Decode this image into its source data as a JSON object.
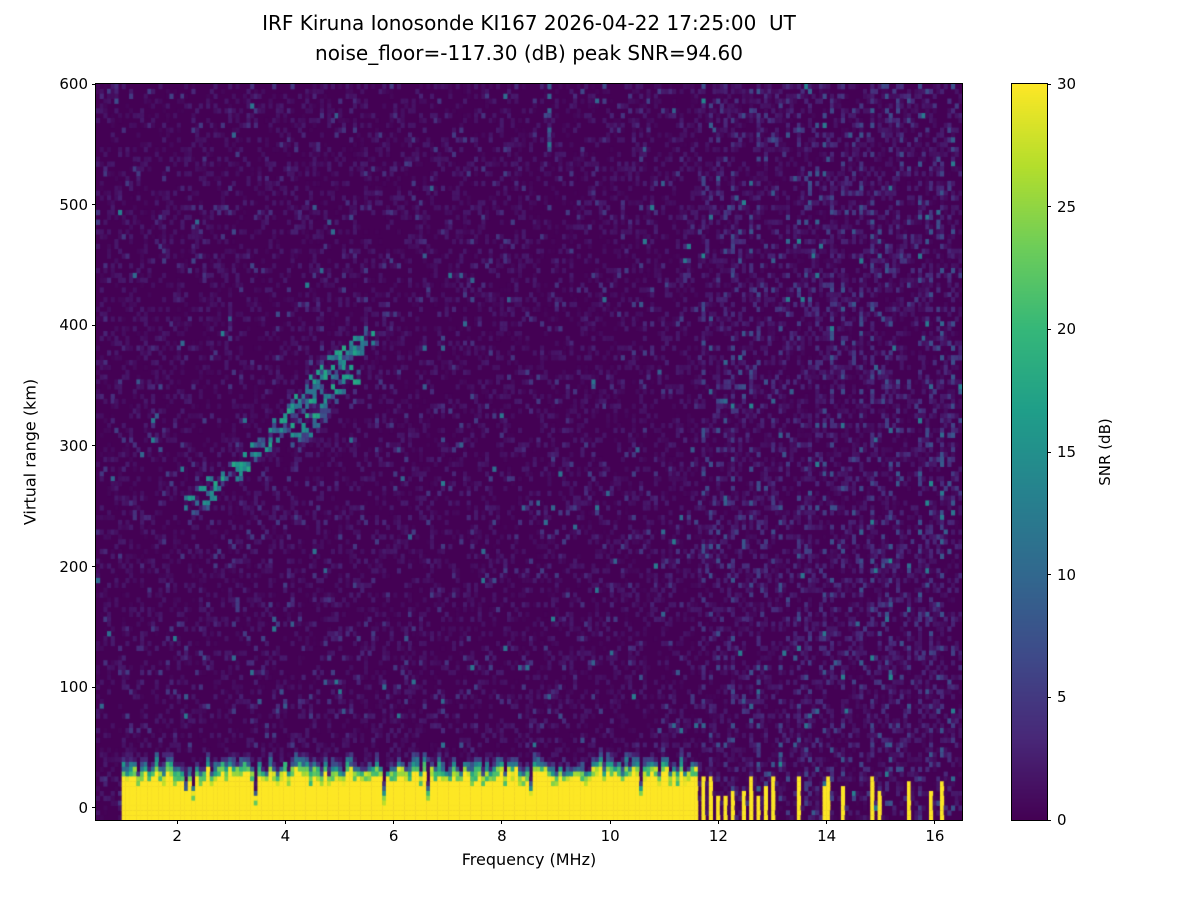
{
  "chart_data": {
    "type": "heatmap",
    "title_line1": "IRF Kiruna Ionosonde KI167 2026-04-22 17:25:00  UT",
    "title_line2": "noise_floor=-117.30 (dB) peak SNR=94.60",
    "xlabel": "Frequency (MHz)",
    "ylabel": "Virtual range (km)",
    "colorbar_label": "SNR (dB)",
    "colormap": "viridis",
    "xlim": [
      0.5,
      16.5
    ],
    "ylim": [
      -10,
      600
    ],
    "clim": [
      0,
      30
    ],
    "xticks": [
      2,
      4,
      6,
      8,
      10,
      12,
      14,
      16
    ],
    "yticks": [
      0,
      100,
      200,
      300,
      400,
      500,
      600
    ],
    "colorbar_ticks": [
      0,
      5,
      10,
      15,
      20,
      25,
      30
    ],
    "noise_floor_db": -117.3,
    "peak_snr_db": 94.6,
    "features": {
      "ground_clutter": {
        "freq_range_mhz": [
          0.95,
          11.65
        ],
        "top_km_base": 24,
        "top_km_jitter": 12,
        "snr_db": 30
      },
      "clutter_stripes_mhz": [
        11.72,
        11.86,
        12.0,
        12.14,
        12.28,
        12.44,
        12.58,
        12.72,
        12.86,
        13.0,
        13.5,
        13.95,
        14.05,
        14.3,
        14.85,
        15.0,
        15.5,
        15.9,
        16.1
      ],
      "rfi_columns_mhz": [
        11.72,
        11.86,
        12.0,
        12.14,
        12.28,
        12.44,
        12.58,
        12.72,
        12.86,
        13.0,
        13.15,
        13.3,
        13.5,
        13.65,
        13.8,
        13.95,
        14.1,
        14.3,
        14.5,
        14.65,
        14.85,
        15.0,
        15.15,
        15.35,
        15.5,
        15.7,
        15.9,
        16.1,
        16.3
      ],
      "echo_trace_mhz_km": [
        [
          2.25,
          252
        ],
        [
          2.45,
          258
        ],
        [
          2.65,
          264
        ],
        [
          2.85,
          272
        ],
        [
          3.05,
          280
        ],
        [
          3.25,
          288
        ],
        [
          3.45,
          296
        ],
        [
          3.65,
          305
        ],
        [
          3.85,
          313
        ],
        [
          4.0,
          320
        ],
        [
          4.15,
          328
        ],
        [
          4.3,
          336
        ],
        [
          4.45,
          344
        ],
        [
          4.6,
          352
        ],
        [
          4.75,
          359
        ],
        [
          4.9,
          366
        ],
        [
          5.05,
          372
        ],
        [
          5.2,
          378
        ],
        [
          5.35,
          383
        ],
        [
          5.5,
          388
        ]
      ],
      "echo_branch_mhz_km": [
        [
          4.2,
          305
        ],
        [
          4.35,
          312
        ],
        [
          4.5,
          320
        ],
        [
          4.65,
          328
        ],
        [
          4.8,
          336
        ],
        [
          4.95,
          344
        ],
        [
          5.1,
          351
        ],
        [
          5.25,
          358
        ]
      ],
      "top_streak": {
        "freq_mhz": 8.85,
        "range_km": [
          545,
          600
        ]
      }
    }
  }
}
